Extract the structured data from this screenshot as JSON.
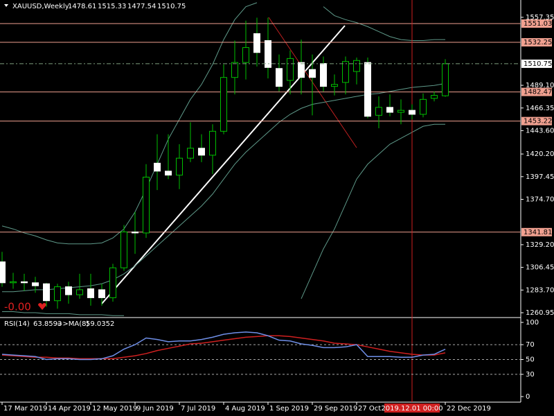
{
  "chart_data": {
    "type": "candlestick",
    "symbol": "XAUUSD,Weekly",
    "categories": [
      "17 Mar 2019",
      null,
      null,
      null,
      "14 Apr 2019",
      null,
      null,
      null,
      "12 May 2019",
      null,
      null,
      null,
      "9 Jun 2019",
      null,
      null,
      null,
      "7 Jul 2019",
      null,
      null,
      null,
      "4 Aug 2019",
      null,
      null,
      null,
      "1 Sep 2019",
      null,
      null,
      null,
      "29 Sep 2019",
      null,
      null,
      null,
      "27 Oct 2019",
      null,
      null,
      null,
      null,
      null,
      null,
      null,
      "22 Dec 2019"
    ],
    "crosshair": {
      "index": 37,
      "label": "2019.12.01 00:00"
    },
    "open": [
      1312,
      1291,
      1292,
      1291,
      1290,
      1273,
      1287,
      1279,
      1285,
      1284,
      1276,
      1306,
      1342,
      1341,
      1411,
      1403,
      1399,
      1416,
      1426,
      1419,
      1443,
      1497,
      1512,
      1541,
      1534,
      1506,
      1494,
      1512,
      1505,
      1511,
      1488,
      1492,
      1503,
      1512,
      1459,
      1467,
      1462,
      1464,
      1460,
      1476,
      1478.61
    ],
    "high": [
      1322,
      1301,
      1300,
      1297,
      1291,
      1290,
      1292,
      1300,
      1300,
      1290,
      1310,
      1349,
      1362,
      1410,
      1440,
      1440,
      1430,
      1452,
      1440,
      1450,
      1510,
      1534,
      1554,
      1557,
      1557,
      1520,
      1524,
      1535,
      1520,
      1518,
      1500,
      1518,
      1517,
      1517,
      1478,
      1480,
      1475,
      1470,
      1481,
      1483,
      1515.33
    ],
    "low": [
      1287,
      1285,
      1283,
      1281,
      1267,
      1265,
      1270,
      1275,
      1268,
      1268,
      1272,
      1303,
      1320,
      1336,
      1384,
      1395,
      1385,
      1412,
      1412,
      1400,
      1440,
      1480,
      1495,
      1508,
      1496,
      1483,
      1480,
      1480,
      1459,
      1483,
      1479,
      1480,
      1490,
      1456,
      1446,
      1458,
      1450,
      1455,
      1457,
      1473,
      1477.54
    ],
    "close": [
      1291,
      1292,
      1291,
      1288,
      1273,
      1287,
      1279,
      1284,
      1276,
      1276,
      1306,
      1342,
      1341,
      1397,
      1403,
      1399,
      1416,
      1426,
      1419,
      1443,
      1497,
      1512,
      1527,
      1522,
      1507,
      1488,
      1516,
      1497,
      1497,
      1488,
      1490,
      1513,
      1514,
      1458,
      1467,
      1462,
      1464,
      1460,
      1475,
      1479,
      1510.75
    ],
    "bull_color": "#000000",
    "bear_color": "#ffffff",
    "wick_color": "#00c000",
    "ylim": [
      1256.8,
      1574.7
    ],
    "yticks": [
      1557.35,
      {
        "value": 1489.1,
        "label": "1489.10"
      },
      1466.35,
      {
        "value": 1443.6,
        "label": "1443.60"
      },
      {
        "value": 1420.2,
        "label": "1420.20"
      },
      1397.45,
      {
        "value": 1374.7,
        "label": "1374.70"
      },
      {
        "value": 1329.2,
        "label": "1329.20"
      },
      1306.45,
      {
        "value": 1283.7,
        "label": "1283.70"
      },
      1260.95
    ],
    "levels": [
      1551.03,
      1532.25,
      1482.47,
      1453.22,
      1341.81
    ],
    "level_color": "#f0a090",
    "bands": {
      "color": "#5f9a8a",
      "upper": [
        1348,
        1345,
        1341,
        1338,
        1334,
        1331,
        1330,
        1330,
        1330,
        1331,
        1336,
        1345,
        1362,
        1385,
        1410,
        1435,
        1455,
        1475,
        1490,
        1510,
        1535,
        1555,
        1568,
        1572,
        null,
        null,
        null,
        null,
        null,
        1568,
        1559,
        1555,
        1552,
        1548,
        1543,
        1538,
        1535,
        1534,
        1534,
        1535,
        1535
      ],
      "middle": [
        1282,
        1282,
        1283,
        1284,
        1284,
        1285,
        1286,
        1287,
        1288,
        1290,
        1294,
        1300,
        1308,
        1318,
        1328,
        1338,
        1348,
        1358,
        1368,
        1380,
        1395,
        1410,
        1422,
        1432,
        1442,
        1452,
        1460,
        1466,
        1470,
        1472,
        1474,
        1476,
        1478,
        1480,
        1481,
        1483,
        1485,
        1487,
        1488,
        1489,
        1491
      ],
      "lower": [
        1262,
        1262,
        1261,
        1261,
        1260,
        1260,
        1260,
        1259,
        1259,
        1259,
        1258,
        1258,
        null,
        null,
        null,
        null,
        null,
        null,
        null,
        null,
        null,
        null,
        null,
        null,
        null,
        null,
        null,
        1275,
        1300,
        1325,
        1345,
        1370,
        1395,
        1410,
        1420,
        1430,
        1436,
        1442,
        1448,
        1450,
        1450
      ]
    },
    "indicator_value": "-0.00",
    "rsi": {
      "ylim": [
        0,
        100
      ],
      "yticks": [
        100,
        70,
        50,
        30,
        0
      ],
      "levels": [
        70,
        50,
        30
      ],
      "series": [
        {
          "name": "RSI(14)",
          "color": "#6f8fe8",
          "values": [
            57,
            56,
            55,
            54,
            50,
            51,
            51,
            50,
            50,
            51,
            55,
            64,
            70,
            79,
            77,
            74,
            75,
            75,
            77,
            80,
            84,
            86,
            87,
            86,
            82,
            76,
            75,
            71,
            69,
            66,
            66,
            67,
            70,
            54,
            54,
            54,
            53,
            53,
            56,
            57,
            63.8593
          ]
        },
        {
          "name": "=>MA(8)",
          "color": "#d02020",
          "values": [
            56,
            55,
            54,
            53,
            53,
            52,
            52,
            51,
            51,
            51,
            51,
            53,
            55,
            58,
            62,
            65,
            68,
            71,
            72,
            74,
            76,
            78,
            80,
            81,
            82,
            82,
            81,
            79,
            77,
            75,
            72,
            71,
            70,
            67,
            64,
            61,
            59,
            57,
            56,
            56,
            59.0352
          ]
        }
      ]
    }
  }
}
